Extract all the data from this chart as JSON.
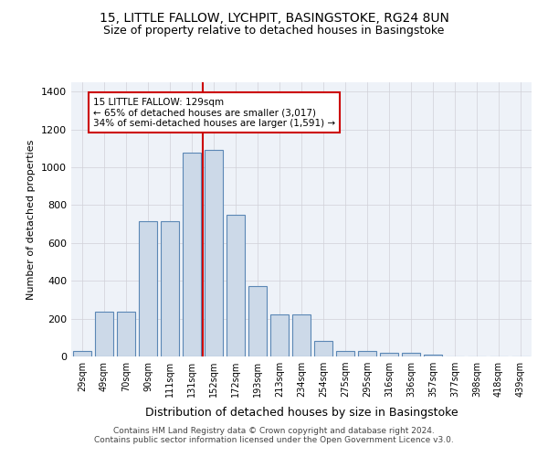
{
  "title_line1": "15, LITTLE FALLOW, LYCHPIT, BASINGSTOKE, RG24 8UN",
  "title_line2": "Size of property relative to detached houses in Basingstoke",
  "xlabel": "Distribution of detached houses by size in Basingstoke",
  "ylabel": "Number of detached properties",
  "categories": [
    "29sqm",
    "49sqm",
    "70sqm",
    "90sqm",
    "111sqm",
    "131sqm",
    "152sqm",
    "172sqm",
    "193sqm",
    "213sqm",
    "234sqm",
    "254sqm",
    "275sqm",
    "295sqm",
    "316sqm",
    "336sqm",
    "357sqm",
    "377sqm",
    "398sqm",
    "418sqm",
    "439sqm"
  ],
  "bar_heights": [
    28,
    235,
    235,
    715,
    715,
    1080,
    1090,
    750,
    370,
    220,
    220,
    80,
    28,
    28,
    18,
    18,
    10,
    0,
    0,
    0,
    0
  ],
  "bar_color": "#ccd9e8",
  "bar_edge_color": "#5b87b5",
  "grid_color": "#d0d0d8",
  "bg_color": "#eef2f8",
  "annotation_text": "15 LITTLE FALLOW: 129sqm\n← 65% of detached houses are smaller (3,017)\n34% of semi-detached houses are larger (1,591) →",
  "annotation_box_color": "#ffffff",
  "annotation_box_edge": "#cc0000",
  "vline_x": 5.5,
  "vline_color": "#cc0000",
  "ylim": [
    0,
    1450
  ],
  "yticks": [
    0,
    200,
    400,
    600,
    800,
    1000,
    1200,
    1400
  ],
  "footer1": "Contains HM Land Registry data © Crown copyright and database right 2024.",
  "footer2": "Contains public sector information licensed under the Open Government Licence v3.0."
}
